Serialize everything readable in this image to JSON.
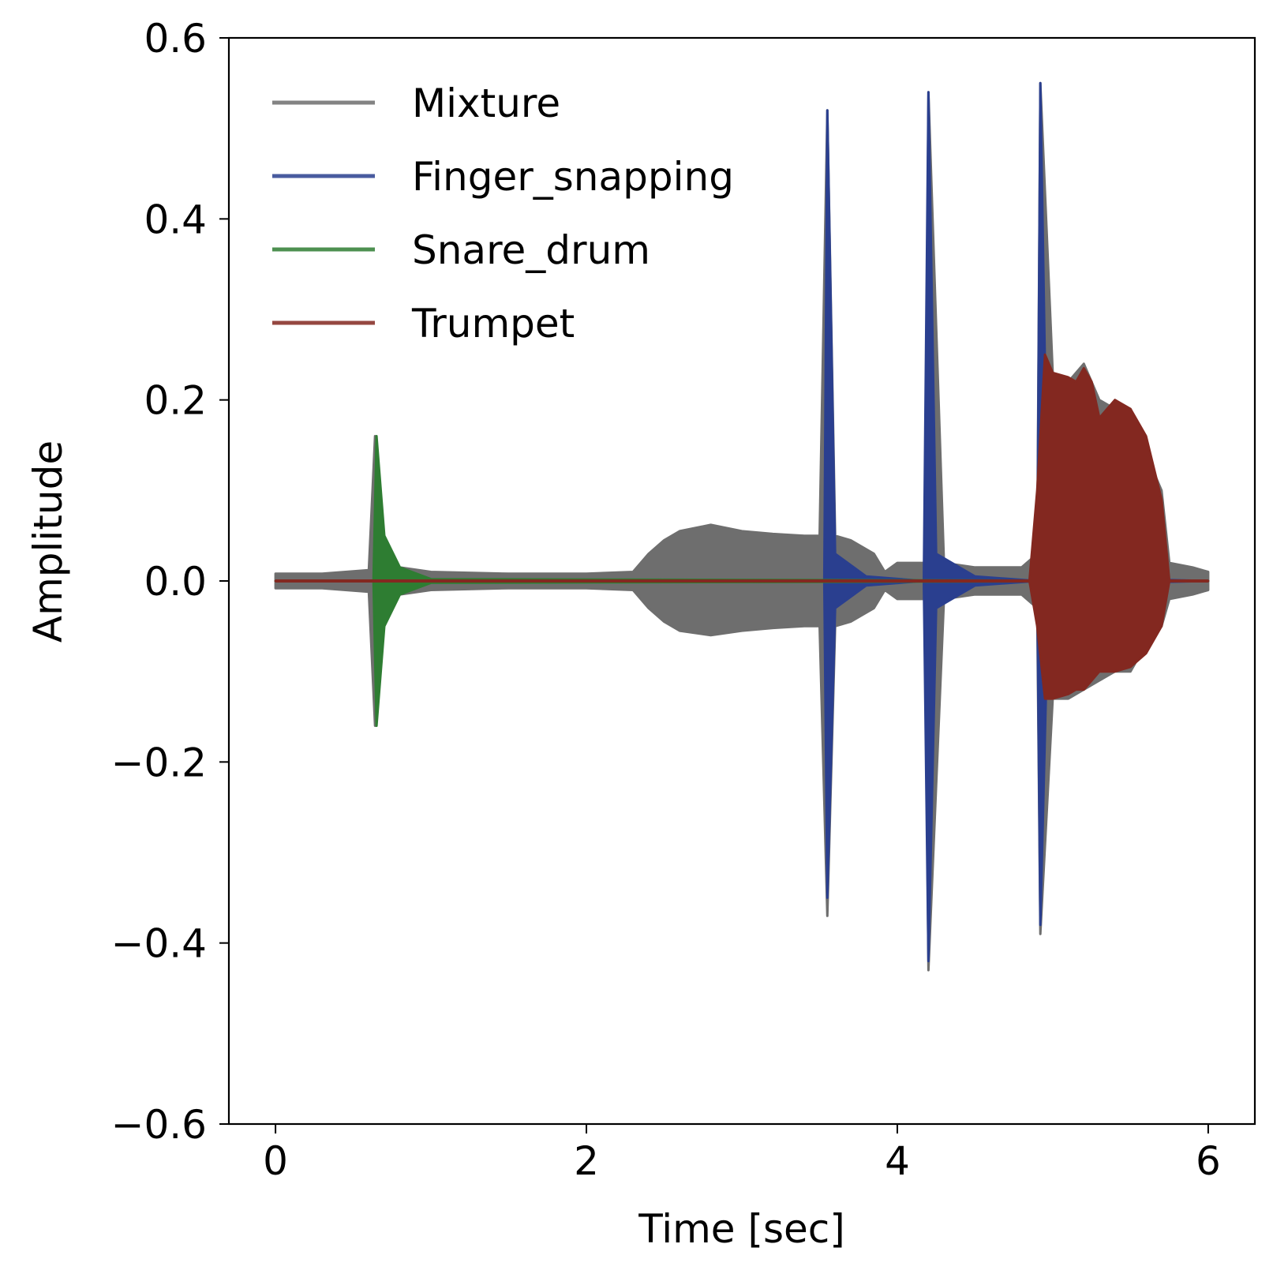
{
  "chart_data": {
    "type": "line",
    "title": "",
    "xlabel": "Time [sec]",
    "ylabel": "Amplitude",
    "xlim": [
      -0.3,
      6.3
    ],
    "ylim": [
      -0.6,
      0.6
    ],
    "xticks": [
      0,
      2,
      4,
      6
    ],
    "xtick_labels": [
      "0",
      "2",
      "4",
      "6"
    ],
    "yticks": [
      0.6,
      0.4,
      0.2,
      0.0,
      -0.2,
      -0.4,
      -0.6
    ],
    "ytick_labels": [
      "0.6",
      "0.4",
      "0.2",
      "0.0",
      "−0.2",
      "−0.4",
      "−0.6"
    ],
    "grid": false,
    "legend_position": "top-left",
    "series": [
      {
        "name": "Mixture",
        "color": "#6e6e6e",
        "envelope": {
          "x": [
            0.0,
            0.3,
            0.6,
            0.64,
            0.7,
            0.8,
            1.0,
            1.5,
            2.0,
            2.3,
            2.4,
            2.5,
            2.6,
            2.8,
            3.0,
            3.2,
            3.4,
            3.5,
            3.55,
            3.6,
            3.7,
            3.85,
            3.92,
            4.0,
            4.18,
            4.2,
            4.3,
            4.5,
            4.8,
            4.9,
            4.92,
            5.0,
            5.1,
            5.2,
            5.3,
            5.4,
            5.5,
            5.6,
            5.7,
            5.75,
            5.9,
            6.0
          ],
          "upper": [
            0.008,
            0.008,
            0.012,
            0.16,
            0.03,
            0.015,
            0.01,
            0.008,
            0.008,
            0.01,
            0.03,
            0.045,
            0.055,
            0.062,
            0.055,
            0.052,
            0.05,
            0.05,
            0.52,
            0.05,
            0.045,
            0.03,
            0.01,
            0.02,
            0.02,
            0.54,
            0.02,
            0.015,
            0.015,
            0.03,
            0.55,
            0.23,
            0.22,
            0.24,
            0.2,
            0.19,
            0.19,
            0.14,
            0.1,
            0.02,
            0.015,
            0.01
          ],
          "lower": [
            -0.008,
            -0.008,
            -0.012,
            -0.16,
            -0.03,
            -0.015,
            -0.01,
            -0.008,
            -0.008,
            -0.01,
            -0.03,
            -0.045,
            -0.055,
            -0.06,
            -0.055,
            -0.052,
            -0.05,
            -0.05,
            -0.37,
            -0.05,
            -0.045,
            -0.03,
            -0.01,
            -0.02,
            -0.02,
            -0.43,
            -0.02,
            -0.015,
            -0.015,
            -0.03,
            -0.39,
            -0.13,
            -0.13,
            -0.12,
            -0.11,
            -0.1,
            -0.1,
            -0.07,
            -0.05,
            -0.02,
            -0.015,
            -0.01
          ]
        }
      },
      {
        "name": "Finger_snapping",
        "color": "#2a3f8f",
        "envelope": {
          "x": [
            0.0,
            3.53,
            3.55,
            3.6,
            3.8,
            4.17,
            4.2,
            4.25,
            4.5,
            4.9,
            4.92,
            4.97,
            5.3,
            6.0
          ],
          "upper": [
            0.0,
            0.0,
            0.52,
            0.03,
            0.005,
            0.0,
            0.54,
            0.03,
            0.005,
            0.0,
            0.55,
            0.03,
            0.003,
            0.0
          ],
          "lower": [
            0.0,
            0.0,
            -0.35,
            -0.03,
            -0.005,
            0.0,
            -0.42,
            -0.03,
            -0.005,
            0.0,
            -0.38,
            -0.03,
            -0.003,
            0.0
          ]
        }
      },
      {
        "name": "Snare_drum",
        "color": "#2e7d32",
        "envelope": {
          "x": [
            0.0,
            0.63,
            0.65,
            0.7,
            0.8,
            1.0,
            6.0
          ],
          "upper": [
            0.0,
            0.0,
            0.16,
            0.05,
            0.015,
            0.002,
            0.0
          ],
          "lower": [
            0.0,
            0.0,
            -0.16,
            -0.05,
            -0.015,
            -0.002,
            0.0
          ]
        }
      },
      {
        "name": "Trumpet",
        "color": "#832820",
        "envelope": {
          "x": [
            0.0,
            4.85,
            4.9,
            4.95,
            5.0,
            5.1,
            5.15,
            5.2,
            5.25,
            5.3,
            5.4,
            5.5,
            5.6,
            5.7,
            5.75,
            6.0
          ],
          "upper": [
            0.0,
            0.0,
            0.1,
            0.25,
            0.23,
            0.225,
            0.22,
            0.235,
            0.22,
            0.18,
            0.2,
            0.19,
            0.16,
            0.09,
            0.0,
            0.0
          ],
          "lower": [
            0.0,
            0.0,
            -0.05,
            -0.13,
            -0.13,
            -0.125,
            -0.12,
            -0.12,
            -0.11,
            -0.1,
            -0.1,
            -0.095,
            -0.08,
            -0.05,
            0.0,
            0.0
          ]
        }
      }
    ]
  }
}
